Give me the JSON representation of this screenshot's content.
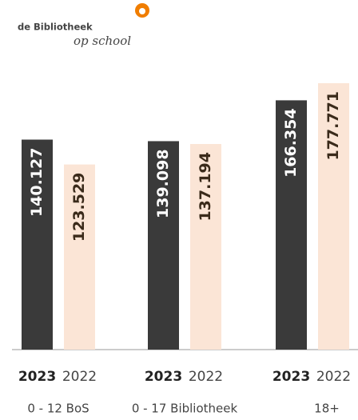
{
  "logo": {
    "name": "de Bibliotheek",
    "tagline": "op school"
  },
  "chart_data": {
    "type": "bar",
    "categories": [
      "0 - 12 BoS",
      "0 - 17 Bibliotheek",
      "18+"
    ],
    "series": [
      {
        "name": "2023",
        "color": "#3a3a3a",
        "values": [
          140127,
          139098,
          166354
        ],
        "value_labels": [
          "140.127",
          "139.098",
          "166.354"
        ]
      },
      {
        "name": "2022",
        "color": "#fbe5d6",
        "values": [
          123529,
          137194,
          177771
        ],
        "value_labels": [
          "123.529",
          "137.194",
          "177.771"
        ]
      }
    ]
  }
}
